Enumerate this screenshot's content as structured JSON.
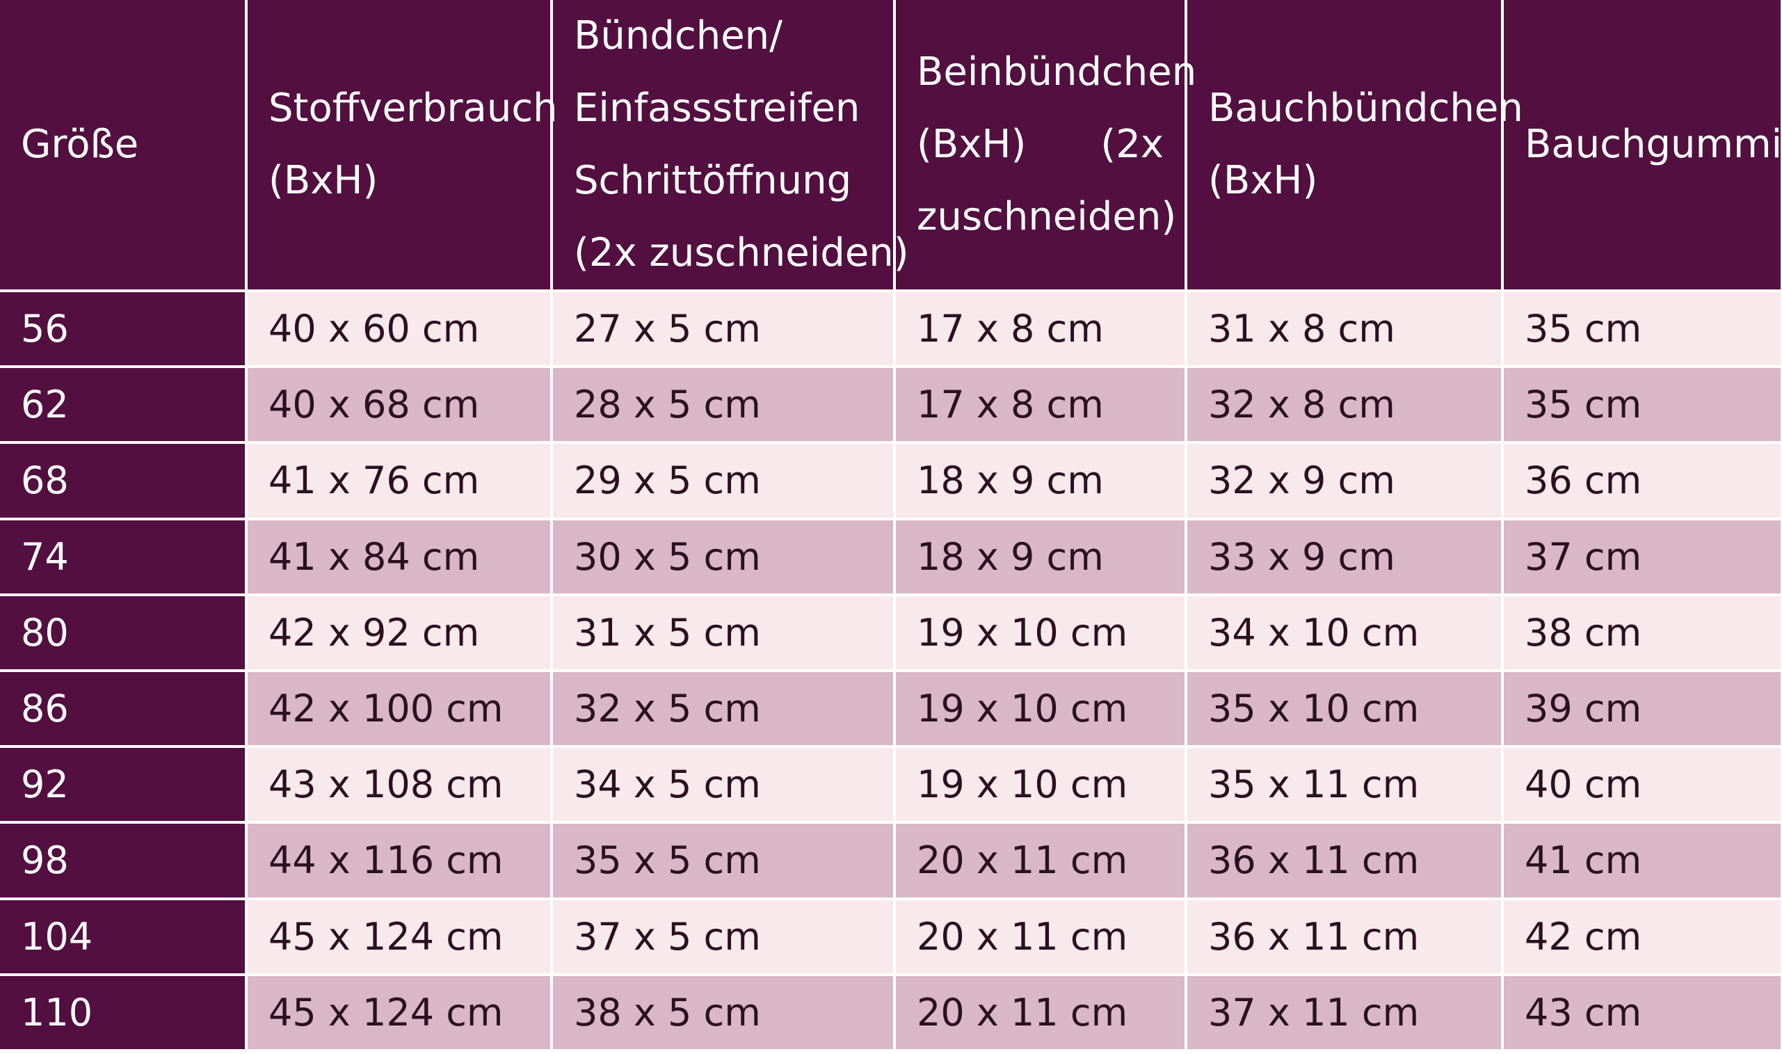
{
  "table": {
    "header": {
      "size": [
        "Größe"
      ],
      "fabric": [
        "Stoffverbrauch",
        "(BxH)"
      ],
      "cuffs_binding": [
        "Bündchen/",
        "Einfassstreifen",
        "Schrittöffnung",
        "(2x zuschneiden)"
      ],
      "leg_cuffs": {
        "line1": "Beinbündchen",
        "line2_left": "(BxH)",
        "line2_right": "(2x",
        "line3": "zuschneiden)"
      },
      "belly_cuff": [
        "Bauchbündchen",
        "(BxH)"
      ],
      "belly_elastic": [
        "Bauchgummi"
      ]
    },
    "rows": [
      [
        "56",
        "40 x 60 cm",
        "27 x 5 cm",
        "17 x 8 cm",
        "31 x 8 cm",
        "35 cm"
      ],
      [
        "62",
        "40 x 68 cm",
        "28 x 5 cm",
        "17 x 8 cm",
        "32 x 8 cm",
        "35 cm"
      ],
      [
        "68",
        "41 x 76 cm",
        "29 x 5 cm",
        "18 x 9 cm",
        "32 x 9 cm",
        "36 cm"
      ],
      [
        "74",
        "41 x 84 cm",
        "30 x 5 cm",
        "18 x 9 cm",
        "33 x 9 cm",
        "37 cm"
      ],
      [
        "80",
        "42 x 92 cm",
        "31 x 5 cm",
        "19 x 10 cm",
        "34 x 10 cm",
        "38 cm"
      ],
      [
        "86",
        "42 x 100 cm",
        "32 x 5 cm",
        "19 x 10 cm",
        "35 x 10 cm",
        "39 cm"
      ],
      [
        "92",
        "43 x 108 cm",
        "34 x 5 cm",
        "19 x 10 cm",
        "35 x 11 cm",
        "40 cm"
      ],
      [
        "98",
        "44 x 116 cm",
        "35 x 5 cm",
        "20 x 11 cm",
        "36 x 11 cm",
        "41 cm"
      ],
      [
        "104",
        "45 x 124 cm",
        "37 x 5 cm",
        "20 x 11 cm",
        "36 x 11 cm",
        "42 cm"
      ],
      [
        "110",
        "45 x 124 cm",
        "38 x 5 cm",
        "20 x 11 cm",
        "37 x 11 cm",
        "43 cm"
      ]
    ]
  },
  "colors": {
    "header_bg": "#520f3f",
    "row_light": "#f8e9ec",
    "row_dark": "#d9b7c6",
    "header_text": "#ffffff",
    "body_text": "#2b1020"
  }
}
